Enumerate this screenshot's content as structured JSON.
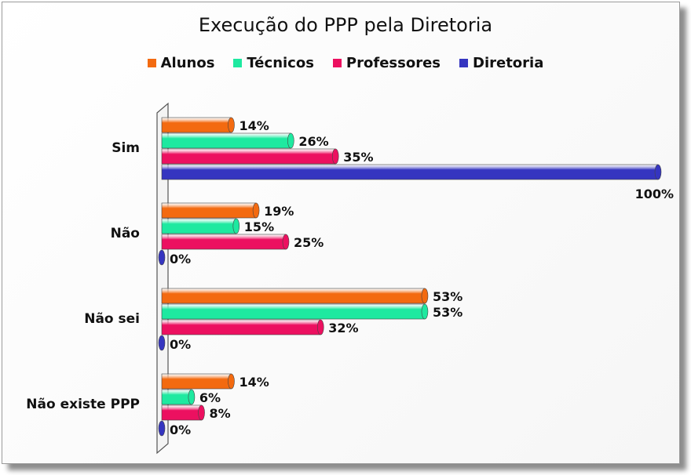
{
  "chart_data": {
    "type": "bar",
    "orientation": "horizontal",
    "title": "Execução do PPP pela Diretoria",
    "categories": [
      "Sim",
      "Não",
      "Não sei",
      "Não existe PPP"
    ],
    "series": [
      {
        "name": "Alunos",
        "color": "#f36a10",
        "values": [
          14,
          19,
          53,
          14
        ],
        "labels": [
          "14%",
          "19%",
          "53%",
          "14%"
        ]
      },
      {
        "name": "Técnicos",
        "color": "#1ee9a0",
        "values": [
          26,
          15,
          53,
          6
        ],
        "labels": [
          "26%",
          "15%",
          "53%",
          "6%"
        ]
      },
      {
        "name": "Professores",
        "color": "#ec1060",
        "values": [
          35,
          25,
          32,
          8
        ],
        "labels": [
          "35%",
          "25%",
          "32%",
          "8%"
        ]
      },
      {
        "name": "Diretoria",
        "color": "#3535c0",
        "values": [
          100,
          0,
          0,
          0
        ],
        "labels": [
          "100%",
          "0%",
          "0%",
          "0%"
        ]
      }
    ],
    "xlim": [
      0,
      100
    ],
    "legend_position": "top",
    "grid": false
  }
}
